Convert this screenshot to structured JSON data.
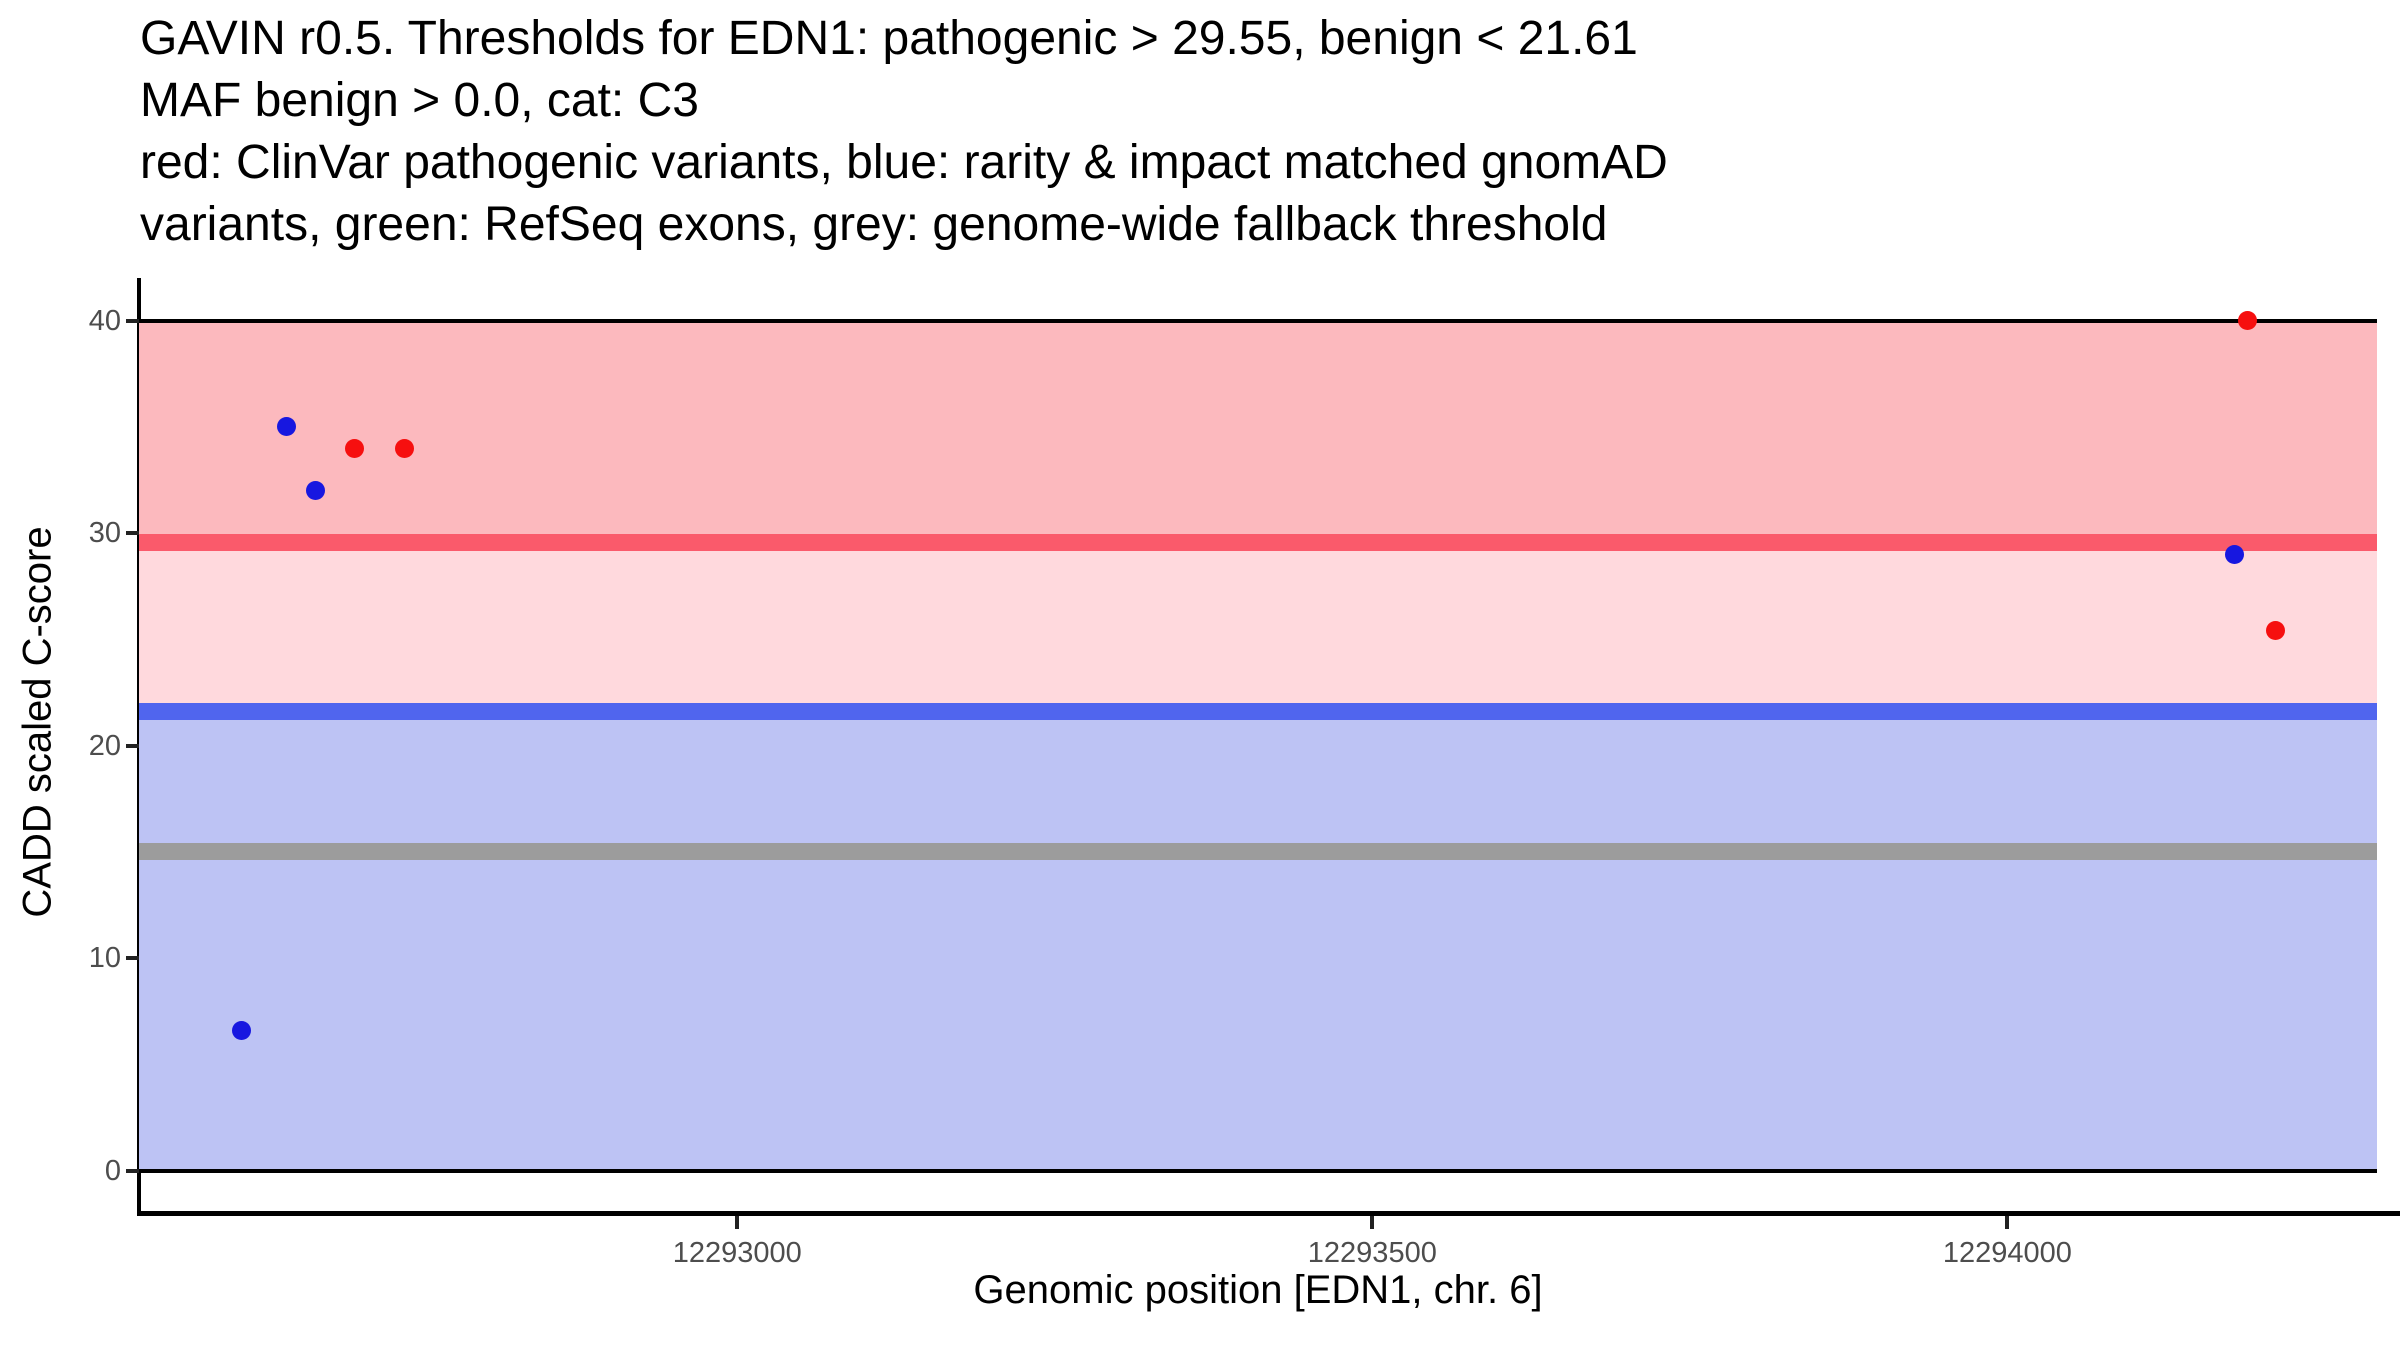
{
  "chart_data": {
    "type": "scatter",
    "title_lines": [
      "GAVIN r0.5. Thresholds for EDN1: pathogenic > 29.55, benign < 21.61",
      "MAF benign > 0.0, cat: C3",
      "red: ClinVar pathogenic variants, blue: rarity & impact matched gnomAD",
      "variants, green: RefSeq exons, grey: genome-wide fallback threshold"
    ],
    "xlabel": "Genomic position [EDN1, chr. 6]",
    "ylabel": "CADD scaled C-score",
    "gene": "EDN1",
    "chromosome": "6",
    "x_domain": [
      12292529,
      12294291
    ],
    "y_domain": [
      -2,
      42
    ],
    "x_ticks": [
      12293000,
      12293500,
      12294000
    ],
    "y_ticks": [
      0,
      10,
      20,
      30,
      40
    ],
    "grid": false,
    "legend_position": "none",
    "thresholds": {
      "pathogenic": 29.55,
      "benign": 21.61,
      "maf_benign": 0.0,
      "category": "C3",
      "genome_wide_fallback": 15
    },
    "bands": [
      {
        "key": "pathogenic-zone",
        "from": 29.55,
        "to": 40,
        "color": "#FCB9BE",
        "border_top": "#000000"
      },
      {
        "key": "vus-zone",
        "from": 21.61,
        "to": 29.55,
        "color": "#FFD9DD"
      },
      {
        "key": "benign-zone",
        "from": 0,
        "to": 21.61,
        "color": "#BDC3F4",
        "border_bottom": "#000000"
      }
    ],
    "hlines": [
      {
        "key": "pathogenic-threshold-line",
        "y": 29.55,
        "color": "#FA5A6B",
        "thickness": 17
      },
      {
        "key": "benign-threshold-line",
        "y": 21.61,
        "color": "#5065EE",
        "thickness": 17
      },
      {
        "key": "genome-wide-fallback-threshold-line",
        "y": 15,
        "color": "#9C9C9C",
        "thickness": 17
      }
    ],
    "series": [
      {
        "name": "ClinVar pathogenic variants",
        "key": "clinvar-pathogenic-variant",
        "color": "#F60F0F",
        "points": [
          [
            12292699,
            34
          ],
          [
            12292738,
            34
          ],
          [
            12294189,
            40
          ],
          [
            12294211,
            25.4
          ]
        ]
      },
      {
        "name": "rarity & impact matched gnomAD variants",
        "key": "gnomad-matched-variant",
        "color": "#1717E0",
        "points": [
          [
            12292610,
            6.6
          ],
          [
            12292645,
            35
          ],
          [
            12292668,
            32
          ],
          [
            12294179,
            29
          ]
        ]
      }
    ]
  }
}
